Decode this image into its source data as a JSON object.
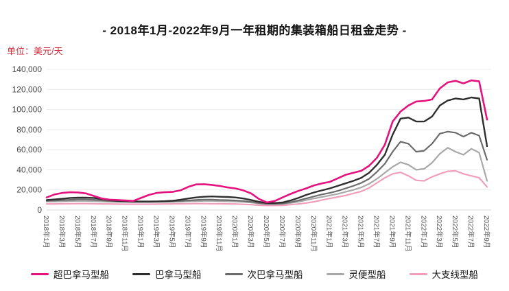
{
  "title": "- 2018年1月-2022年9月一年租期的集装箱船日租金走势 -",
  "unit_label": "单位：美元/天",
  "colors": {
    "unit_label": "#c9303c",
    "grid": "#ececec",
    "axis_line": "#d9d9d9",
    "y_tick_text": "#454545",
    "x_tick_text": "#5a5a5a"
  },
  "chart_data": {
    "type": "line",
    "title": "2018年1月-2022年9月一年租期的集装箱船日租金走势",
    "ylabel": "美元/天",
    "xlabel": "",
    "ylim": [
      0,
      140000
    ],
    "y_ticks": [
      0,
      20000,
      40000,
      60000,
      80000,
      100000,
      120000,
      140000
    ],
    "y_tick_labels": [
      "0",
      "20,000",
      "40,000",
      "60,000",
      "80,000",
      "100,000",
      "120,000",
      "140,000"
    ],
    "grid": "horizontal",
    "legend_position": "bottom",
    "x_months_total": 57,
    "x_tick_every": 2,
    "x_tick_labels": [
      "2018年1月",
      "2018年3月",
      "2018年5月",
      "2018年7月",
      "2018年9月",
      "2018年11月",
      "2019年1月",
      "2019年3月",
      "2019年5月",
      "2019年7月",
      "2019年9月",
      "2019年11月",
      "2020年1月",
      "2020年3月",
      "2020年5月",
      "2020年7月",
      "2020年9月",
      "2020年11月",
      "2021年1月",
      "2021年3月",
      "2021年5月",
      "2021年7月",
      "2021年9月",
      "2021年11月",
      "2022年1月",
      "2022年3月",
      "2022年5月",
      "2022年7月",
      "2022年9月"
    ],
    "series": [
      {
        "name": "超巴拿马型船",
        "color": "#e5127d",
        "stroke_width": 2.6,
        "values": [
          12500,
          15500,
          17000,
          17700,
          17500,
          16500,
          14000,
          11500,
          10300,
          10000,
          9500,
          9000,
          12000,
          15000,
          17000,
          17700,
          18000,
          19500,
          23000,
          25500,
          25700,
          25000,
          24000,
          22500,
          21500,
          19500,
          16500,
          11000,
          7500,
          9000,
          12500,
          16000,
          19000,
          21500,
          24500,
          26500,
          28000,
          31500,
          35000,
          37000,
          39000,
          44000,
          52000,
          65000,
          88000,
          98000,
          104000,
          108000,
          108500,
          110000,
          121000,
          127000,
          128500,
          126000,
          129000,
          128000,
          90000
        ]
      },
      {
        "name": "巴拿马型船",
        "color": "#2e2e2e",
        "stroke_width": 2.4,
        "values": [
          10000,
          10500,
          11200,
          12000,
          12300,
          12300,
          12000,
          11000,
          9800,
          9000,
          8800,
          8500,
          8500,
          8500,
          8600,
          8800,
          9200,
          10200,
          11500,
          12500,
          13200,
          13500,
          13200,
          13000,
          12500,
          11500,
          10000,
          8200,
          7000,
          7000,
          7500,
          9500,
          12000,
          15000,
          17500,
          19500,
          21500,
          24000,
          26500,
          29000,
          32000,
          37000,
          45000,
          55000,
          75000,
          91000,
          92000,
          88000,
          88000,
          93000,
          104000,
          109000,
          111000,
          110000,
          112000,
          111000,
          63500
        ]
      },
      {
        "name": "次巴拿马型船",
        "color": "#6b6b6b",
        "stroke_width": 2.2,
        "values": [
          9200,
          9400,
          9800,
          10200,
          10500,
          10500,
          10200,
          9600,
          9000,
          8700,
          8500,
          8300,
          8300,
          8300,
          8400,
          8500,
          8700,
          9000,
          9500,
          10000,
          10300,
          10300,
          10000,
          9800,
          9500,
          9000,
          8200,
          7000,
          6200,
          6200,
          6500,
          7800,
          9500,
          11500,
          13500,
          15500,
          17000,
          19000,
          21500,
          24000,
          27000,
          31000,
          38000,
          46000,
          58000,
          68000,
          66000,
          58000,
          59000,
          66000,
          76000,
          78000,
          77000,
          73000,
          77000,
          74000,
          50000
        ]
      },
      {
        "name": "灵便型船",
        "color": "#a8a8a8",
        "stroke_width": 2.2,
        "values": [
          8400,
          8500,
          8700,
          8900,
          9000,
          9000,
          8800,
          8500,
          8200,
          8000,
          7900,
          7800,
          7800,
          7800,
          7900,
          8000,
          8100,
          8300,
          8600,
          8800,
          9000,
          9000,
          8800,
          8600,
          8400,
          8000,
          7400,
          6500,
          5800,
          5800,
          6000,
          7000,
          8200,
          9800,
          11500,
          13000,
          14500,
          16000,
          18000,
          20000,
          22500,
          26000,
          31000,
          37000,
          43000,
          47500,
          45000,
          40000,
          41000,
          47000,
          56000,
          62000,
          58000,
          55000,
          61000,
          57000,
          29000
        ]
      },
      {
        "name": "大支线型船",
        "color": "#f19ebc",
        "stroke_width": 2.2,
        "values": [
          6000,
          6100,
          6200,
          6300,
          6400,
          6400,
          6300,
          6100,
          6000,
          5900,
          5800,
          5800,
          5800,
          5800,
          5900,
          6000,
          6100,
          6200,
          6300,
          6400,
          6400,
          6300,
          6200,
          6100,
          6000,
          5700,
          5300,
          4800,
          4500,
          4500,
          4700,
          5300,
          6000,
          7000,
          8200,
          10000,
          11500,
          13000,
          14500,
          16500,
          18500,
          22000,
          27000,
          32000,
          36000,
          37500,
          34000,
          29500,
          29000,
          33000,
          36000,
          38500,
          39000,
          36000,
          34000,
          32000,
          23000
        ]
      }
    ]
  }
}
